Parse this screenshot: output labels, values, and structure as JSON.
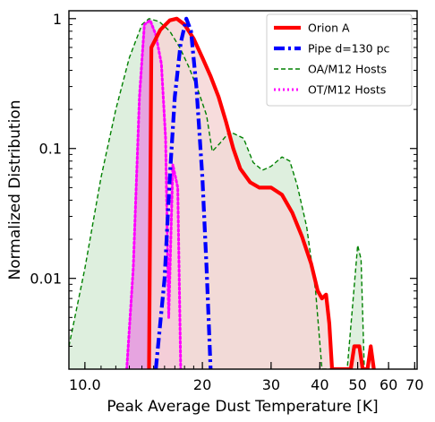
{
  "chart_data": {
    "type": "line",
    "xlabel": "Peak Average Dust Temperature [K]",
    "ylabel": "Normalized Distribution",
    "xscale": "log",
    "yscale": "log",
    "xlim": [
      9.1,
      71
    ],
    "ylim": [
      0.002,
      1.15
    ],
    "x_ticks": [
      {
        "value": 10,
        "label": "10.0"
      },
      {
        "value": 20,
        "label": "20"
      },
      {
        "value": 30,
        "label": "30"
      },
      {
        "value": 40,
        "label": "40"
      },
      {
        "value": 50,
        "label": "50"
      },
      {
        "value": 60,
        "label": "60"
      },
      {
        "value": 70,
        "label": "70"
      }
    ],
    "y_ticks": [
      {
        "value": 1,
        "label": "1"
      },
      {
        "value": 0.1,
        "label": "0.1"
      },
      {
        "value": 0.01,
        "label": "0.01"
      }
    ],
    "grid": false,
    "legend_position": "top-right",
    "series": [
      {
        "name": "OA/M12 Hosts",
        "color": "#008000",
        "fill": "#d8ecd8",
        "style": "dashed",
        "points": [
          [
            9.1,
            0.003
          ],
          [
            10,
            0.012
          ],
          [
            11,
            0.06
          ],
          [
            12,
            0.2
          ],
          [
            13,
            0.5
          ],
          [
            14,
            0.9
          ],
          [
            14.6,
            1.0
          ],
          [
            15.5,
            0.95
          ],
          [
            16.5,
            0.8
          ],
          [
            17.5,
            0.6
          ],
          [
            18.5,
            0.42
          ],
          [
            19.5,
            0.28
          ],
          [
            20.5,
            0.18
          ],
          [
            21.2,
            0.095
          ],
          [
            22.2,
            0.11
          ],
          [
            23.5,
            0.135
          ],
          [
            25.5,
            0.12
          ],
          [
            27,
            0.078
          ],
          [
            28.5,
            0.068
          ],
          [
            30,
            0.073
          ],
          [
            32,
            0.086
          ],
          [
            33.5,
            0.08
          ],
          [
            35,
            0.052
          ],
          [
            37,
            0.025
          ],
          [
            39,
            0.008
          ],
          [
            40.5,
            0.002
          ],
          [
            47,
            0.002
          ],
          [
            48.5,
            0.006
          ],
          [
            50,
            0.018
          ],
          [
            51,
            0.014
          ],
          [
            52,
            0.002
          ]
        ]
      },
      {
        "name": "OT/M12 Hosts",
        "color": "#ff00ff",
        "fill": "#e896e0",
        "style": "dotted",
        "points": [
          [
            12.8,
            0.002
          ],
          [
            13.3,
            0.012
          ],
          [
            13.8,
            0.25
          ],
          [
            14.2,
            0.9
          ],
          [
            14.7,
            0.97
          ],
          [
            15.2,
            0.75
          ],
          [
            15.7,
            0.45
          ],
          [
            16.1,
            0.12
          ],
          [
            16.4,
            0.005
          ],
          [
            16.8,
            0.075
          ],
          [
            17.3,
            0.05
          ],
          [
            17.6,
            0.002
          ]
        ]
      },
      {
        "name": "Orion A",
        "color": "#ff0000",
        "fill": "#f6d6d6",
        "style": "solid",
        "points": [
          [
            14.6,
            0.002
          ],
          [
            14.8,
            0.6
          ],
          [
            15.6,
            0.82
          ],
          [
            16.5,
            0.97
          ],
          [
            17.2,
            1.0
          ],
          [
            18,
            0.9
          ],
          [
            19,
            0.7
          ],
          [
            20,
            0.5
          ],
          [
            21,
            0.36
          ],
          [
            22,
            0.25
          ],
          [
            23,
            0.16
          ],
          [
            24,
            0.1
          ],
          [
            25,
            0.07
          ],
          [
            26.5,
            0.055
          ],
          [
            28,
            0.05
          ],
          [
            30,
            0.05
          ],
          [
            32,
            0.044
          ],
          [
            34,
            0.032
          ],
          [
            36,
            0.021
          ],
          [
            38,
            0.013
          ],
          [
            39.5,
            0.008
          ],
          [
            40.5,
            0.007
          ],
          [
            41.5,
            0.0075
          ],
          [
            42.3,
            0.0045
          ],
          [
            43,
            0.002
          ],
          [
            48,
            0.002
          ],
          [
            49,
            0.003
          ],
          [
            50.5,
            0.003
          ],
          [
            51.5,
            0.002
          ],
          [
            53,
            0.002
          ],
          [
            54,
            0.003
          ],
          [
            55,
            0.002
          ]
        ]
      },
      {
        "name": "Pipe d=130 pc",
        "color": "#0000ff",
        "fill": "none",
        "style": "dashdot",
        "points": [
          [
            15.2,
            0.002
          ],
          [
            16,
            0.01
          ],
          [
            16.5,
            0.06
          ],
          [
            17,
            0.25
          ],
          [
            17.6,
            0.65
          ],
          [
            18.2,
            1.0
          ],
          [
            18.7,
            0.8
          ],
          [
            19.3,
            0.3
          ],
          [
            20,
            0.06
          ],
          [
            20.5,
            0.012
          ],
          [
            21,
            0.002
          ]
        ]
      }
    ]
  },
  "legend": {
    "items": [
      {
        "label": "Orion A",
        "color": "#ff0000",
        "style": "solid"
      },
      {
        "label": "Pipe d=130 pc",
        "color": "#0000ff",
        "style": "dashdot"
      },
      {
        "label": "OA/M12 Hosts",
        "color": "#008000",
        "style": "dashed"
      },
      {
        "label": "OT/M12 Hosts",
        "color": "#ff00ff",
        "style": "dotted"
      }
    ]
  }
}
